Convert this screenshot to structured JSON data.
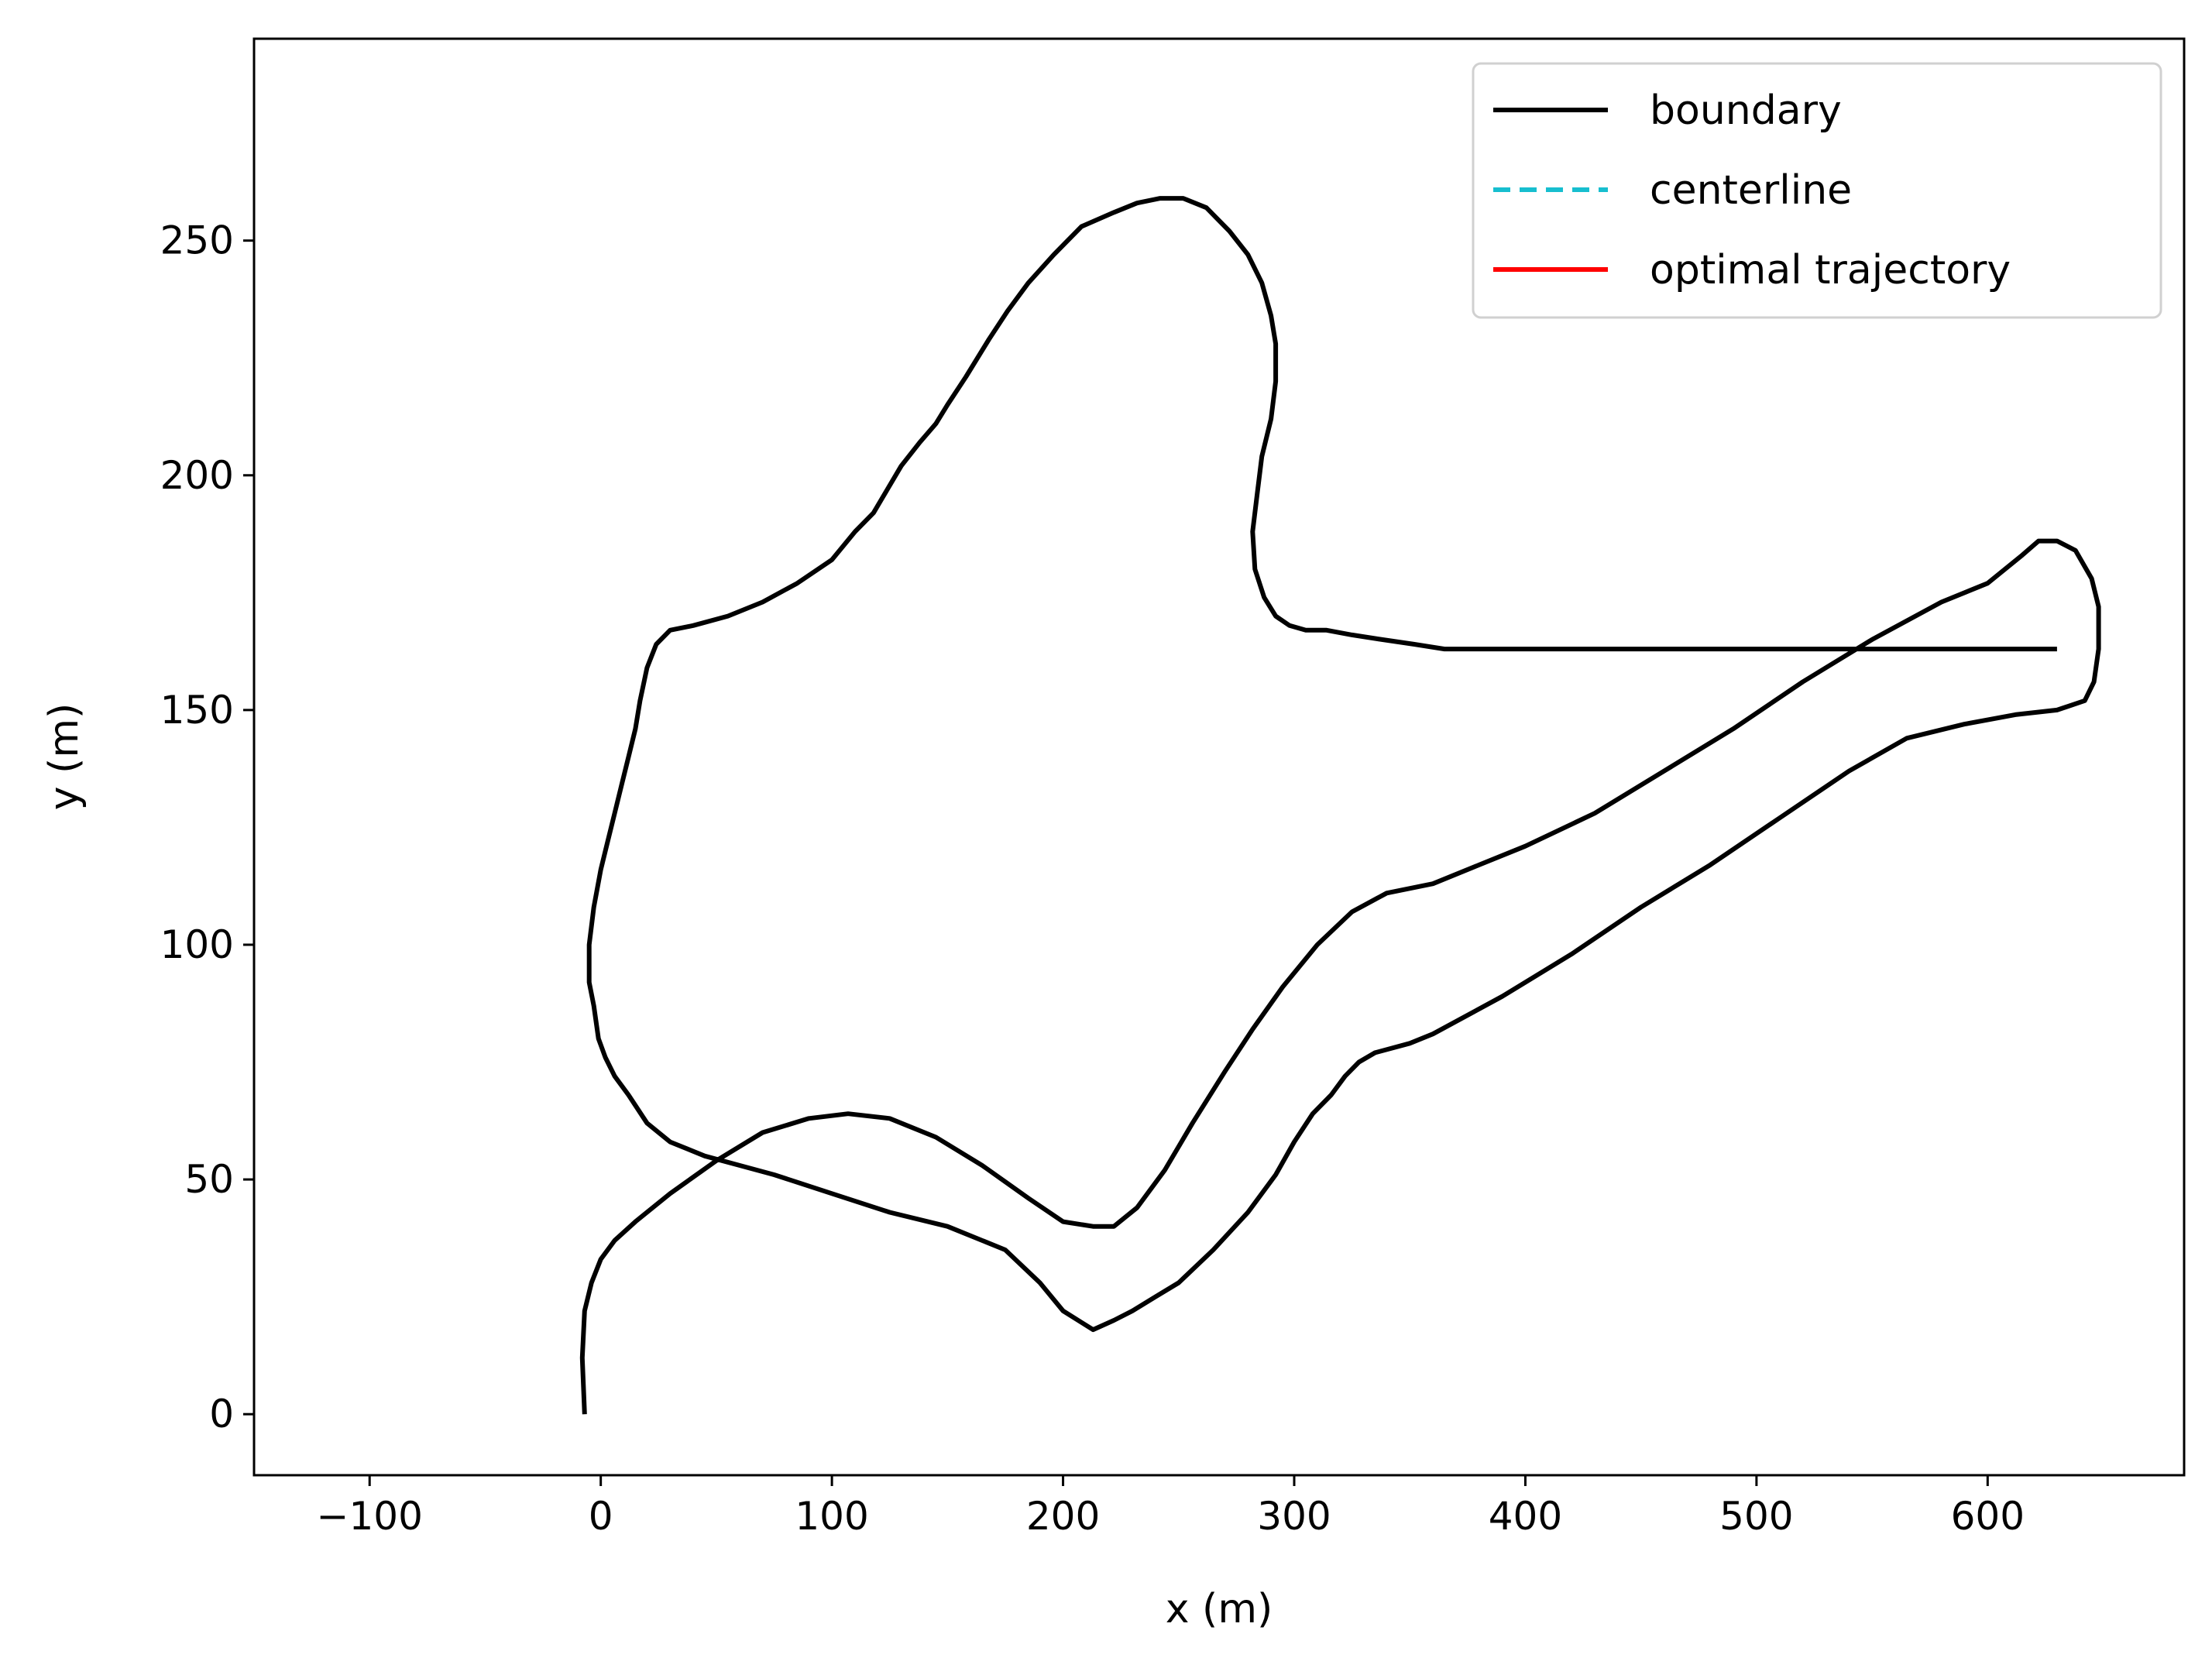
{
  "chart_data": {
    "type": "line",
    "xlabel": "x (m)",
    "ylabel": "y (m)",
    "xlim": [
      -150,
      685
    ],
    "ylim": [
      -13,
      293
    ],
    "x_ticks": [
      -100,
      0,
      100,
      200,
      300,
      400,
      500,
      600
    ],
    "x_tick_labels": [
      "−100",
      "0",
      "100",
      "200",
      "300",
      "400",
      "500",
      "600"
    ],
    "y_ticks": [
      0,
      50,
      100,
      150,
      200,
      250
    ],
    "y_tick_labels": [
      "0",
      "50",
      "100",
      "150",
      "200",
      "250"
    ],
    "grid": false,
    "legend_position": "top-right",
    "series": [
      {
        "name": "boundary",
        "color": "#000000",
        "style": "solid",
        "lines": [
          [
            [
              -7,
              0
            ],
            [
              -8,
              12
            ],
            [
              -7,
              22
            ],
            [
              -4,
              28
            ],
            [
              0,
              33
            ],
            [
              6,
              37
            ],
            [
              15,
              41
            ],
            [
              30,
              47
            ],
            [
              50,
              54
            ],
            [
              70,
              60
            ],
            [
              90,
              63
            ],
            [
              107,
              64
            ],
            [
              125,
              63
            ],
            [
              145,
              59
            ],
            [
              165,
              53
            ],
            [
              185,
              46
            ],
            [
              200,
              41
            ],
            [
              213,
              40
            ],
            [
              222,
              40
            ],
            [
              232,
              44
            ],
            [
              244,
              52
            ],
            [
              256,
              62
            ],
            [
              270,
              73
            ],
            [
              282,
              82
            ],
            [
              295,
              91
            ],
            [
              310,
              100
            ],
            [
              325,
              107
            ],
            [
              340,
              111
            ],
            [
              360,
              113
            ],
            [
              380,
              117
            ],
            [
              400,
              121
            ],
            [
              430,
              128
            ],
            [
              460,
              137
            ],
            [
              490,
              146
            ],
            [
              520,
              156
            ],
            [
              550,
              165
            ],
            [
              580,
              173
            ],
            [
              600,
              177
            ],
            [
              615,
              183
            ],
            [
              622,
              186
            ],
            [
              630,
              186
            ],
            [
              638,
              184
            ],
            [
              645,
              178
            ],
            [
              648,
              172
            ],
            [
              648,
              163
            ],
            [
              646,
              156
            ],
            [
              642,
              152
            ],
            [
              630,
              150
            ],
            [
              612,
              149
            ],
            [
              590,
              147
            ],
            [
              565,
              144
            ],
            [
              540,
              137
            ],
            [
              510,
              127
            ],
            [
              480,
              117
            ],
            [
              450,
              108
            ],
            [
              420,
              98
            ],
            [
              390,
              89
            ],
            [
              360,
              81
            ],
            [
              350,
              79
            ],
            [
              335,
              77
            ],
            [
              328,
              75
            ],
            [
              322,
              72
            ],
            [
              316,
              68
            ],
            [
              308,
              64
            ],
            [
              300,
              58
            ],
            [
              292,
              51
            ],
            [
              280,
              43
            ],
            [
              265,
              35
            ],
            [
              250,
              28
            ],
            [
              240,
              25
            ],
            [
              230,
              22
            ],
            [
              222,
              20
            ],
            [
              213,
              18
            ],
            [
              200,
              22
            ],
            [
              190,
              28
            ],
            [
              175,
              35
            ],
            [
              150,
              40
            ],
            [
              125,
              43
            ],
            [
              100,
              47
            ],
            [
              75,
              51
            ],
            [
              60,
              53
            ],
            [
              45,
              55
            ],
            [
              30,
              58
            ],
            [
              20,
              62
            ],
            [
              12,
              68
            ],
            [
              6,
              72
            ],
            [
              2,
              76
            ],
            [
              -1,
              80
            ],
            [
              -3,
              87
            ],
            [
              -5,
              92
            ],
            [
              -5,
              100
            ],
            [
              -3,
              108
            ],
            [
              0,
              116
            ],
            [
              3,
              122
            ],
            [
              6,
              128
            ],
            [
              9,
              134
            ],
            [
              12,
              140
            ],
            [
              15,
              146
            ],
            [
              17,
              152
            ],
            [
              20,
              159
            ],
            [
              24,
              164
            ],
            [
              30,
              167
            ],
            [
              40,
              168
            ],
            [
              55,
              170
            ],
            [
              70,
              173
            ],
            [
              85,
              177
            ],
            [
              100,
              182
            ],
            [
              110,
              188
            ],
            [
              118,
              192
            ],
            [
              124,
              197
            ],
            [
              130,
              202
            ],
            [
              138,
              207
            ],
            [
              145,
              211
            ],
            [
              150,
              215
            ],
            [
              158,
              221
            ],
            [
              168,
              229
            ],
            [
              176,
              235
            ],
            [
              185,
              241
            ],
            [
              196,
              247
            ],
            [
              208,
              253
            ],
            [
              222,
              256
            ],
            [
              232,
              258
            ],
            [
              242,
              259
            ],
            [
              252,
              259
            ],
            [
              262,
              257
            ],
            [
              272,
              252
            ],
            [
              280,
              247
            ],
            [
              286,
              241
            ],
            [
              290,
              234
            ],
            [
              292,
              228
            ],
            [
              292,
              220
            ],
            [
              290,
              212
            ],
            [
              286,
              204
            ],
            [
              284,
              196
            ],
            [
              282,
              188
            ],
            [
              283,
              180
            ],
            [
              287,
              174
            ],
            [
              292,
              170
            ],
            [
              298,
              168
            ],
            [
              305,
              167
            ],
            [
              314,
              167
            ],
            [
              325,
              166
            ],
            [
              338,
              165
            ],
            [
              352,
              164
            ],
            [
              365,
              163
            ],
            [
              378,
              163
            ],
            [
              390,
              163
            ],
            [
              400,
              163
            ],
            [
              410,
              163
            ],
            [
              420,
              163
            ],
            [
              430,
              163
            ],
            [
              440,
              163
            ],
            [
              450,
              163
            ],
            [
              460,
              163
            ],
            [
              470,
              163
            ],
            [
              480,
              163
            ],
            [
              490,
              163
            ],
            [
              500,
              163
            ],
            [
              510,
              163
            ],
            [
              520,
              163
            ],
            [
              530,
              163
            ],
            [
              540,
              163
            ],
            [
              550,
              163
            ],
            [
              560,
              163
            ],
            [
              570,
              163
            ],
            [
              580,
              163
            ],
            [
              590,
              163
            ],
            [
              600,
              163
            ],
            [
              610,
              163
            ],
            [
              620,
              163
            ],
            [
              630,
              163
            ]
          ]
        ]
      }
    ]
  },
  "legend": {
    "entries": [
      {
        "label": "boundary",
        "color": "#000000",
        "style": "solid"
      },
      {
        "label": "centerline",
        "color": "#17becf",
        "style": "dashed"
      },
      {
        "label": "optimal trajectory",
        "color": "#ff0000",
        "style": "solid"
      }
    ]
  }
}
